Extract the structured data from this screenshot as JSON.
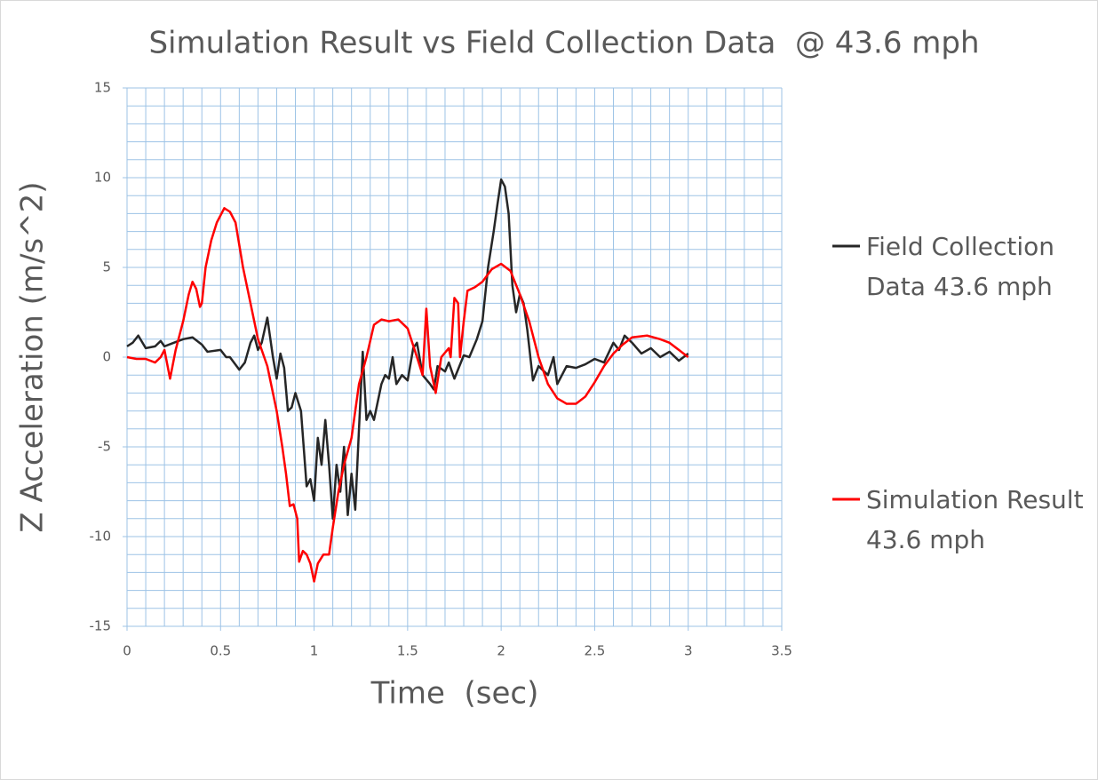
{
  "chart_data": {
    "type": "line",
    "title": "Simulation Result vs Field Collection Data  @ 43.6 mph",
    "xlabel": "Time  (sec)",
    "ylabel": "Z Acceleration (m/s^2)",
    "xlim": [
      0,
      3.5
    ],
    "xticks": [
      0,
      0.5,
      1,
      1.5,
      2,
      2.5,
      3,
      3.5
    ],
    "ylim": [
      -15,
      15
    ],
    "yticks": [
      -15,
      -10,
      -5,
      0,
      5,
      10,
      15
    ],
    "grid": true,
    "grid_color": "#9dc3e6",
    "xminorticks": [
      0,
      0.1,
      0.2,
      0.3,
      0.4,
      0.5,
      0.6,
      0.7,
      0.8,
      0.9,
      1,
      1.1,
      1.2,
      1.3,
      1.4,
      1.5,
      1.6,
      1.7,
      1.8,
      1.9,
      2,
      2.1,
      2.2,
      2.3,
      2.4,
      2.5,
      2.6,
      2.7,
      2.8,
      2.9,
      3,
      3.1,
      3.2,
      3.3,
      3.4,
      3.5
    ],
    "yminorticks": [
      -15,
      -14,
      -13,
      -12,
      -11,
      -10,
      -9,
      -8,
      -7,
      -6,
      -5,
      -4,
      -3,
      -2,
      -1,
      0,
      1,
      2,
      3,
      4,
      5,
      6,
      7,
      8,
      9,
      10,
      11,
      12,
      13,
      14,
      15
    ],
    "legend": "right",
    "series": [
      {
        "name": "Field Collection Data 43.6 mph",
        "color": "#262626",
        "x": [
          0,
          0.03,
          0.06,
          0.1,
          0.15,
          0.18,
          0.2,
          0.25,
          0.3,
          0.35,
          0.4,
          0.43,
          0.5,
          0.53,
          0.55,
          0.6,
          0.63,
          0.66,
          0.68,
          0.7,
          0.72,
          0.75,
          0.78,
          0.8,
          0.82,
          0.84,
          0.86,
          0.88,
          0.9,
          0.93,
          0.96,
          0.98,
          1.0,
          1.02,
          1.04,
          1.06,
          1.08,
          1.1,
          1.12,
          1.14,
          1.16,
          1.18,
          1.2,
          1.22,
          1.24,
          1.26,
          1.28,
          1.3,
          1.32,
          1.36,
          1.38,
          1.4,
          1.42,
          1.44,
          1.47,
          1.5,
          1.53,
          1.55,
          1.58,
          1.62,
          1.64,
          1.66,
          1.7,
          1.72,
          1.75,
          1.8,
          1.83,
          1.87,
          1.9,
          1.93,
          1.96,
          1.98,
          2.0,
          2.02,
          2.04,
          2.06,
          2.08,
          2.1,
          2.12,
          2.14,
          2.17,
          2.2,
          2.23,
          2.25,
          2.28,
          2.3,
          2.35,
          2.4,
          2.45,
          2.5,
          2.55,
          2.6,
          2.63,
          2.66,
          2.7,
          2.75,
          2.8,
          2.85,
          2.9,
          2.95,
          3.0
        ],
        "values": [
          0.6,
          0.8,
          1.2,
          0.5,
          0.6,
          0.9,
          0.6,
          0.8,
          1.0,
          1.1,
          0.7,
          0.3,
          0.4,
          0.0,
          0.0,
          -0.7,
          -0.3,
          0.8,
          1.2,
          0.4,
          0.8,
          2.2,
          0.0,
          -1.2,
          0.2,
          -0.6,
          -3.0,
          -2.8,
          -2.0,
          -3.0,
          -7.2,
          -6.8,
          -8.0,
          -4.5,
          -6.0,
          -3.5,
          -6.0,
          -9.0,
          -6.0,
          -7.5,
          -5.0,
          -8.8,
          -6.5,
          -8.5,
          -4.0,
          0.3,
          -3.5,
          -3.0,
          -3.5,
          -1.5,
          -1.0,
          -1.2,
          0.0,
          -1.5,
          -1.0,
          -1.3,
          0.5,
          0.8,
          -1.0,
          -1.5,
          -1.8,
          -0.5,
          -0.8,
          -0.3,
          -1.2,
          0.1,
          0.0,
          1.0,
          2.0,
          5.0,
          7.0,
          8.5,
          9.9,
          9.5,
          8.0,
          4.0,
          2.5,
          3.5,
          3.0,
          1.5,
          -1.3,
          -0.5,
          -0.8,
          -1.0,
          0.0,
          -1.5,
          -0.5,
          -0.6,
          -0.4,
          -0.1,
          -0.3,
          0.8,
          0.4,
          1.2,
          0.8,
          0.2,
          0.5,
          0.0,
          0.3,
          -0.2,
          0.2
        ]
      },
      {
        "name": "Simulation Result 43.6 mph",
        "color": "#ff0000",
        "x": [
          0,
          0.05,
          0.1,
          0.15,
          0.18,
          0.2,
          0.23,
          0.26,
          0.3,
          0.33,
          0.35,
          0.37,
          0.39,
          0.4,
          0.42,
          0.45,
          0.48,
          0.52,
          0.55,
          0.58,
          0.62,
          0.65,
          0.7,
          0.75,
          0.8,
          0.83,
          0.85,
          0.87,
          0.89,
          0.91,
          0.92,
          0.94,
          0.96,
          0.98,
          1.0,
          1.02,
          1.05,
          1.08,
          1.1,
          1.13,
          1.16,
          1.2,
          1.24,
          1.28,
          1.32,
          1.36,
          1.4,
          1.45,
          1.5,
          1.55,
          1.58,
          1.6,
          1.62,
          1.65,
          1.68,
          1.72,
          1.73,
          1.75,
          1.77,
          1.78,
          1.8,
          1.82,
          1.86,
          1.9,
          1.95,
          2.0,
          2.05,
          2.1,
          2.15,
          2.2,
          2.25,
          2.3,
          2.35,
          2.4,
          2.45,
          2.5,
          2.55,
          2.6,
          2.65,
          2.7,
          2.78,
          2.85,
          2.9,
          2.95,
          3.0
        ],
        "values": [
          0.0,
          -0.1,
          -0.1,
          -0.3,
          0.0,
          0.4,
          -1.2,
          0.4,
          2.0,
          3.5,
          4.2,
          3.8,
          2.8,
          3.0,
          5.0,
          6.5,
          7.5,
          8.3,
          8.1,
          7.5,
          5.0,
          3.5,
          1.0,
          -0.5,
          -3.0,
          -5.0,
          -6.5,
          -8.3,
          -8.2,
          -9.0,
          -11.4,
          -10.8,
          -11.0,
          -11.5,
          -12.5,
          -11.5,
          -11.0,
          -11.0,
          -9.5,
          -7.5,
          -6.0,
          -4.5,
          -1.5,
          0.0,
          1.8,
          2.1,
          2.0,
          2.1,
          1.6,
          0.0,
          -1.0,
          2.7,
          -0.5,
          -2.0,
          0.0,
          0.5,
          0.0,
          3.3,
          3.0,
          0.0,
          2.0,
          3.7,
          3.9,
          4.2,
          4.9,
          5.2,
          4.8,
          3.5,
          2.0,
          0.0,
          -1.5,
          -2.3,
          -2.6,
          -2.6,
          -2.2,
          -1.4,
          -0.5,
          0.2,
          0.7,
          1.1,
          1.2,
          1.0,
          0.8,
          0.4,
          0.0
        ]
      }
    ]
  }
}
